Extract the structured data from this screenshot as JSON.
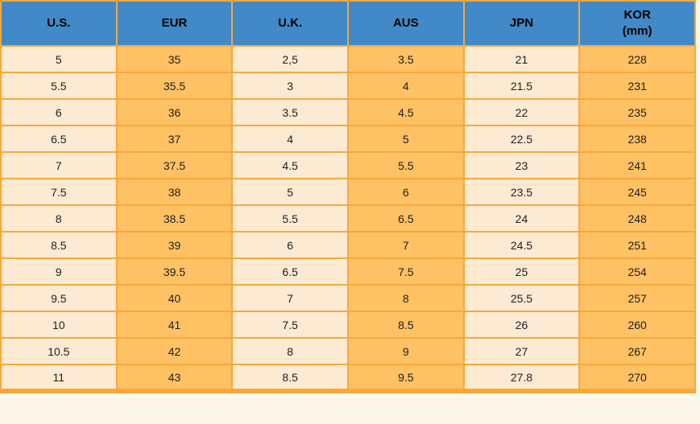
{
  "colors": {
    "header_bg": "#4289C7",
    "grid_border": "#F5A93C",
    "cell_light": "#FDEAD3",
    "cell_orange": "#FEC164",
    "text": "#1F1F1F",
    "page_bg": "#FBF7EA"
  },
  "table": {
    "header": [
      {
        "label": "U.S.",
        "sublabel": ""
      },
      {
        "label": "EUR",
        "sublabel": ""
      },
      {
        "label": "U.K.",
        "sublabel": ""
      },
      {
        "label": "AUS",
        "sublabel": ""
      },
      {
        "label": "JPN",
        "sublabel": ""
      },
      {
        "label": "KOR",
        "sublabel": "(mm)"
      }
    ],
    "rows": [
      [
        "5",
        "35",
        "2,5",
        "3.5",
        "21",
        "228"
      ],
      [
        "5.5",
        "35.5",
        "3",
        "4",
        "21.5",
        "231"
      ],
      [
        "6",
        "36",
        "3.5",
        "4.5",
        "22",
        "235"
      ],
      [
        "6.5",
        "37",
        "4",
        "5",
        "22.5",
        "238"
      ],
      [
        "7",
        "37.5",
        "4.5",
        "5.5",
        "23",
        "241"
      ],
      [
        "7.5",
        "38",
        "5",
        "6",
        "23.5",
        "245"
      ],
      [
        "8",
        "38.5",
        "5.5",
        "6.5",
        "24",
        "248"
      ],
      [
        "8.5",
        "39",
        "6",
        "7",
        "24.5",
        "251"
      ],
      [
        "9",
        "39.5",
        "6.5",
        "7.5",
        "25",
        "254"
      ],
      [
        "9.5",
        "40",
        "7",
        "8",
        "25.5",
        "257"
      ],
      [
        "10",
        "41",
        "7.5",
        "8.5",
        "26",
        "260"
      ],
      [
        "10.5",
        "42",
        "8",
        "9",
        "27",
        "267"
      ],
      [
        "11",
        "43",
        "8.5",
        "9.5",
        "27.8",
        "270"
      ]
    ]
  },
  "chart_data": {
    "type": "table",
    "columns": [
      "U.S.",
      "EUR",
      "U.K.",
      "AUS",
      "JPN",
      "KOR (mm)"
    ],
    "rows": [
      [
        "5",
        "35",
        "2,5",
        "3.5",
        "21",
        "228"
      ],
      [
        "5.5",
        "35.5",
        "3",
        "4",
        "21.5",
        "231"
      ],
      [
        "6",
        "36",
        "3.5",
        "4.5",
        "22",
        "235"
      ],
      [
        "6.5",
        "37",
        "4",
        "5",
        "22.5",
        "238"
      ],
      [
        "7",
        "37.5",
        "4.5",
        "5.5",
        "23",
        "241"
      ],
      [
        "7.5",
        "38",
        "5",
        "6",
        "23.5",
        "245"
      ],
      [
        "8",
        "38.5",
        "5.5",
        "6.5",
        "24",
        "248"
      ],
      [
        "8.5",
        "39",
        "6",
        "7",
        "24.5",
        "251"
      ],
      [
        "9",
        "39.5",
        "6.5",
        "7.5",
        "25",
        "254"
      ],
      [
        "9.5",
        "40",
        "7",
        "8",
        "25.5",
        "257"
      ],
      [
        "10",
        "41",
        "7.5",
        "8.5",
        "26",
        "260"
      ],
      [
        "10.5",
        "42",
        "8",
        "9",
        "27",
        "267"
      ],
      [
        "11",
        "43",
        "8.5",
        "9.5",
        "27.8",
        "270"
      ]
    ]
  }
}
